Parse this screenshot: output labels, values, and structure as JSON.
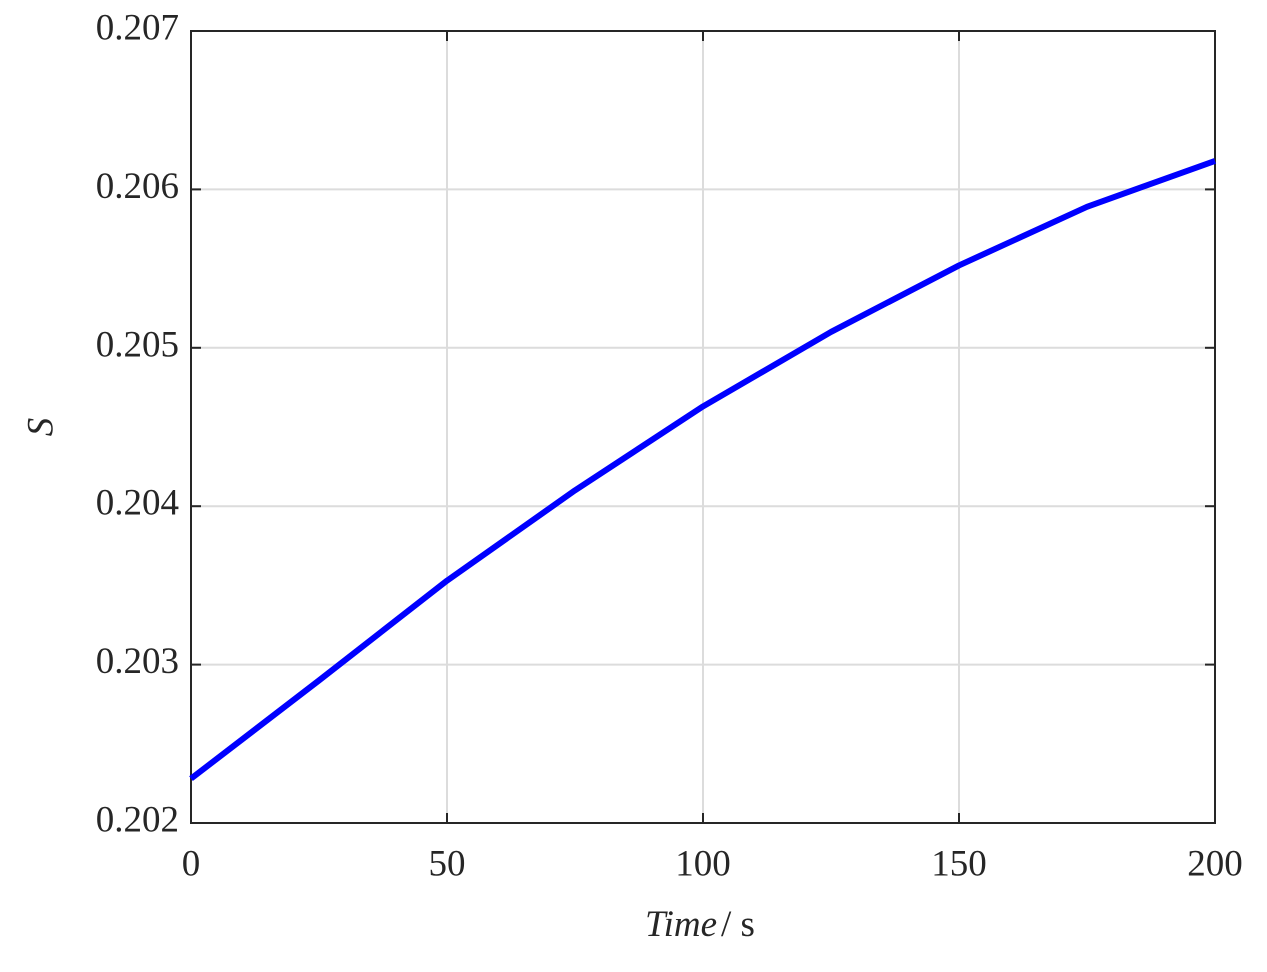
{
  "chart_data": {
    "type": "line",
    "xlabel": [
      "Time",
      "/ s"
    ],
    "ylabel": "S",
    "x": [
      0,
      25,
      50,
      75,
      100,
      125,
      150,
      175,
      200
    ],
    "series": [
      {
        "color": "#0000ff",
        "values": [
          0.20228,
          0.2029,
          0.20353,
          0.2041,
          0.20463,
          0.2051,
          0.20552,
          0.20589,
          0.20618
        ]
      }
    ],
    "xlim": [
      0,
      200
    ],
    "xticks": [
      0,
      50,
      100,
      150,
      200
    ],
    "ylim": [
      0.202,
      0.207
    ],
    "yticks": [
      0.202,
      0.203,
      0.204,
      0.205,
      0.206,
      0.207
    ],
    "grid": true
  }
}
